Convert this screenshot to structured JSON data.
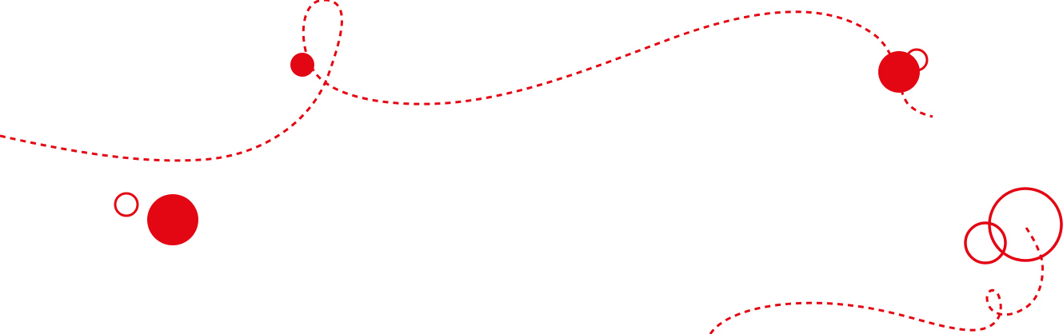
{
  "decoration": {
    "accent_color": "#e30613",
    "background_color": "#ffffff",
    "elements": [
      "dashed-trail",
      "filled-circle",
      "outline-circle"
    ]
  }
}
